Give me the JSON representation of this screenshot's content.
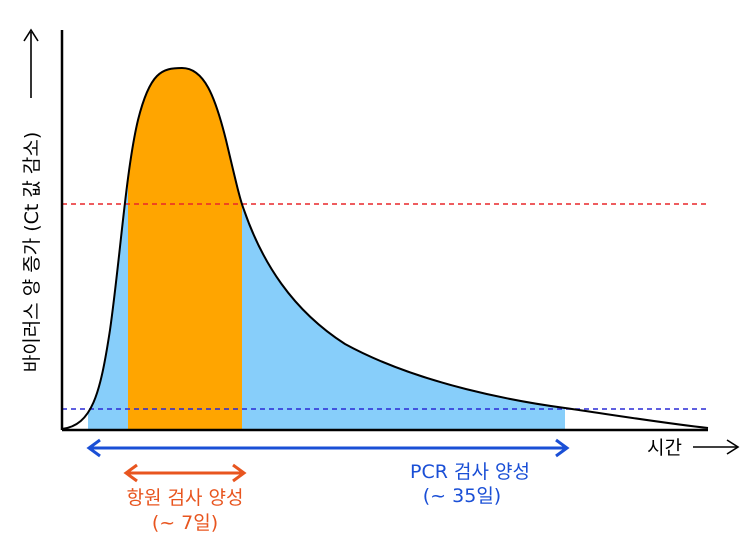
{
  "axes": {
    "y_label": "바이러스 양 증가 (Ct 값 감소)",
    "x_label": "시간"
  },
  "thresholds": {
    "antigen_color": "#e8262a",
    "pcr_color": "#2a2ad6"
  },
  "regions": {
    "pcr_fill": "#87cefa",
    "antigen_fill": "#ffa500"
  },
  "antigen": {
    "label": "항원 검사 양성",
    "duration": "(~ 7일)",
    "color": "#e8551f"
  },
  "pcr": {
    "label": "PCR 검사 양성",
    "duration": "(~ 35일)",
    "color": "#1a4fd6"
  }
}
